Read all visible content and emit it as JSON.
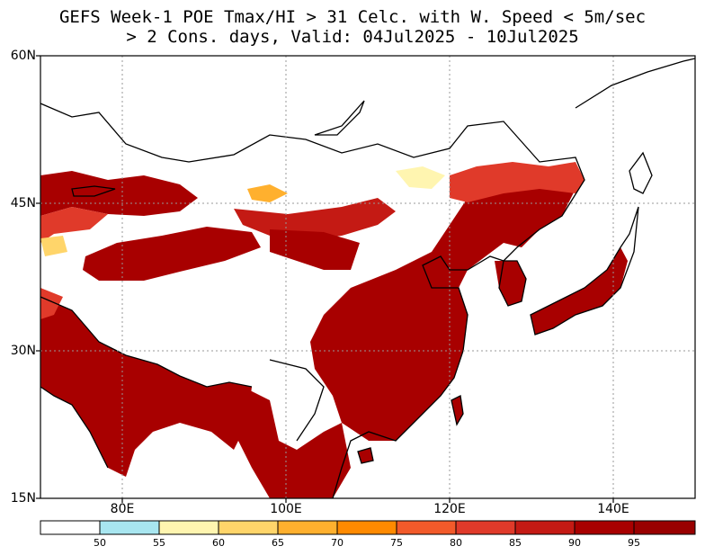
{
  "title_line1": "GEFS Week-1 POE Tmax/HI > 31 Celc. with W. Speed < 5m/sec",
  "title_line2": "> 2 Cons. days, Valid: 04Jul2025 - 10Jul2025",
  "axes": {
    "lat_labels": [
      "60N",
      "45N",
      "30N",
      "15N"
    ],
    "lon_labels": [
      "80E",
      "100E",
      "120E",
      "140E"
    ],
    "lat_range": [
      15,
      60
    ],
    "lon_range": [
      70,
      150
    ],
    "grid": "dotted"
  },
  "colorbar": {
    "ticks": [
      "50",
      "55",
      "60",
      "65",
      "70",
      "75",
      "80",
      "85",
      "90",
      "95"
    ],
    "colors": [
      "#ffffff",
      "#a8e6f0",
      "#fff5b0",
      "#ffd56a",
      "#ffb02e",
      "#ff8a00",
      "#f25a2a",
      "#e03a2a",
      "#c41a14",
      "#a80000",
      "#990000"
    ]
  }
}
